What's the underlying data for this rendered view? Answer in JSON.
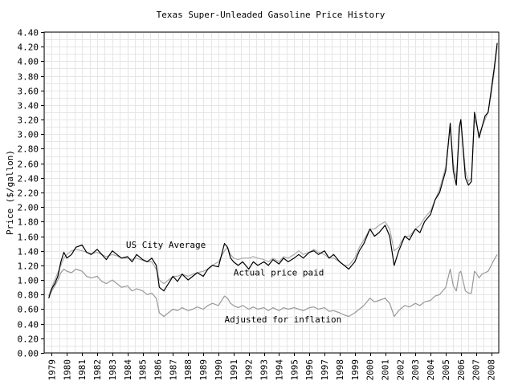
{
  "chart_data": {
    "type": "line",
    "title": "Texas Super-Unleaded Gasoline Price History",
    "xlabel": "",
    "ylabel": "Price ($/gallon)",
    "xlim": [
      1978.5,
      2008.5
    ],
    "ylim": [
      0,
      4.4
    ],
    "grid": true,
    "legend": "none",
    "x_ticks": [
      "1979",
      "1980",
      "1981",
      "1982",
      "1983",
      "1984",
      "1985",
      "1986",
      "1987",
      "1988",
      "1989",
      "1990",
      "1991",
      "1992",
      "1993",
      "1994",
      "1995",
      "1996",
      "1997",
      "1998",
      "1999",
      "2000",
      "2001",
      "2002",
      "2003",
      "2004",
      "2005",
      "2006",
      "2007",
      "2008"
    ],
    "y_ticks": [
      "0.00",
      "0.20",
      "0.40",
      "0.60",
      "0.80",
      "1.00",
      "1.20",
      "1.40",
      "1.60",
      "1.80",
      "2.00",
      "2.20",
      "2.40",
      "2.60",
      "2.80",
      "3.00",
      "3.20",
      "3.40",
      "3.60",
      "3.80",
      "4.00",
      "4.20",
      "4.40"
    ],
    "annotations": [
      {
        "text": "US City Average",
        "x": 1983.9,
        "y": 1.44
      },
      {
        "text": "Actual price paid",
        "x": 1991.0,
        "y": 1.06
      },
      {
        "text": "Adjusted for inflation",
        "x": 1990.4,
        "y": 0.42
      }
    ],
    "series": [
      {
        "color": "#000000",
        "x": [
          1978.8,
          1979.0,
          1979.2,
          1979.4,
          1979.6,
          1979.8,
          1980.0,
          1980.3,
          1980.6,
          1981.0,
          1981.3,
          1981.6,
          1982.0,
          1982.3,
          1982.6,
          1983.0,
          1983.3,
          1983.6,
          1984.0,
          1984.3,
          1984.6,
          1985.0,
          1985.3,
          1985.6,
          1985.9,
          1986.1,
          1986.4,
          1986.7,
          1987.0,
          1987.3,
          1987.6,
          1988.0,
          1988.3,
          1988.6,
          1989.0,
          1989.3,
          1989.6,
          1990.0,
          1990.4,
          1990.6,
          1990.8,
          1991.0,
          1991.3,
          1991.6,
          1992.0,
          1992.3,
          1992.6,
          1993.0,
          1993.3,
          1993.6,
          1994.0,
          1994.3,
          1994.6,
          1995.0,
          1995.3,
          1995.6,
          1996.0,
          1996.3,
          1996.6,
          1997.0,
          1997.3,
          1997.6,
          1998.0,
          1998.3,
          1998.6,
          1999.0,
          1999.3,
          1999.6,
          2000.0,
          2000.3,
          2000.6,
          2001.0,
          2001.3,
          2001.6,
          2001.9,
          2002.0,
          2002.3,
          2002.6,
          2003.0,
          2003.3,
          2003.6,
          2004.0,
          2004.3,
          2004.6,
          2005.0,
          2005.3,
          2005.5,
          2005.7,
          2005.9,
          2006.0,
          2006.3,
          2006.5,
          2006.7,
          2006.9,
          2007.0,
          2007.2,
          2007.4,
          2007.6,
          2007.8,
          2008.0,
          2008.2,
          2008.4
        ],
        "values": [
          0.75,
          0.88,
          0.95,
          1.05,
          1.25,
          1.38,
          1.3,
          1.35,
          1.45,
          1.48,
          1.38,
          1.35,
          1.42,
          1.35,
          1.28,
          1.4,
          1.35,
          1.3,
          1.32,
          1.25,
          1.35,
          1.28,
          1.25,
          1.3,
          1.2,
          0.9,
          0.85,
          0.95,
          1.05,
          0.98,
          1.08,
          1.0,
          1.05,
          1.1,
          1.05,
          1.15,
          1.2,
          1.18,
          1.5,
          1.45,
          1.3,
          1.25,
          1.2,
          1.25,
          1.15,
          1.25,
          1.2,
          1.25,
          1.2,
          1.28,
          1.22,
          1.3,
          1.25,
          1.3,
          1.35,
          1.3,
          1.38,
          1.4,
          1.35,
          1.4,
          1.3,
          1.35,
          1.25,
          1.2,
          1.15,
          1.25,
          1.4,
          1.5,
          1.7,
          1.6,
          1.65,
          1.75,
          1.6,
          1.2,
          1.4,
          1.45,
          1.6,
          1.55,
          1.7,
          1.65,
          1.8,
          1.9,
          2.1,
          2.2,
          2.5,
          3.15,
          2.5,
          2.3,
          3.1,
          3.2,
          2.4,
          2.3,
          2.35,
          3.3,
          3.2,
          2.95,
          3.1,
          3.25,
          3.3,
          3.6,
          3.9,
          4.25
        ]
      },
      {
        "color": "#aaaaaa",
        "x": [
          1978.8,
          1979.0,
          1979.2,
          1979.4,
          1979.6,
          1979.8,
          1980.0,
          1980.3,
          1980.6,
          1981.0,
          1981.3,
          1981.6,
          1982.0,
          1982.3,
          1982.6,
          1983.0,
          1983.3,
          1983.6,
          1984.0,
          1984.3,
          1984.6,
          1985.0,
          1985.3,
          1985.6,
          1985.9,
          1986.1,
          1986.4,
          1986.7,
          1987.0,
          1987.3,
          1987.6,
          1988.0,
          1988.3,
          1988.6,
          1989.0,
          1989.3,
          1989.6,
          1990.0,
          1990.4,
          1990.6,
          1990.8,
          1991.0,
          1991.3,
          1991.6,
          1992.0,
          1992.3,
          1992.6,
          1993.0,
          1993.3,
          1993.6,
          1994.0,
          1994.3,
          1994.6,
          1995.0,
          1995.3,
          1995.6,
          1996.0,
          1996.3,
          1996.6,
          1997.0,
          1997.3,
          1997.6,
          1998.0,
          1998.3,
          1998.6,
          1999.0,
          1999.3,
          1999.6,
          2000.0,
          2000.3,
          2000.6,
          2001.0,
          2001.3,
          2001.6,
          2001.9,
          2002.0,
          2002.3,
          2002.6,
          2003.0,
          2003.3,
          2003.6,
          2004.0,
          2004.3,
          2004.6,
          2005.0,
          2005.3,
          2005.5,
          2005.7,
          2005.9,
          2006.0,
          2006.3,
          2006.5,
          2006.7,
          2006.9,
          2007.0,
          2007.2,
          2007.4,
          2007.6,
          2007.8,
          2008.0,
          2008.2,
          2008.4
        ],
        "values": [
          0.78,
          0.9,
          1.0,
          1.1,
          1.2,
          1.3,
          1.35,
          1.4,
          1.42,
          1.4,
          1.38,
          1.36,
          1.38,
          1.35,
          1.32,
          1.35,
          1.33,
          1.3,
          1.3,
          1.28,
          1.3,
          1.27,
          1.25,
          1.25,
          1.15,
          1.0,
          0.95,
          1.0,
          1.05,
          1.05,
          1.08,
          1.05,
          1.08,
          1.1,
          1.12,
          1.15,
          1.2,
          1.25,
          1.4,
          1.45,
          1.35,
          1.3,
          1.28,
          1.3,
          1.3,
          1.32,
          1.3,
          1.28,
          1.25,
          1.3,
          1.25,
          1.32,
          1.3,
          1.35,
          1.4,
          1.35,
          1.38,
          1.42,
          1.38,
          1.35,
          1.3,
          1.3,
          1.25,
          1.2,
          1.2,
          1.3,
          1.45,
          1.55,
          1.7,
          1.7,
          1.75,
          1.8,
          1.7,
          1.4,
          1.45,
          1.5,
          1.6,
          1.6,
          1.7,
          1.75,
          1.85,
          1.95,
          2.1,
          2.25,
          2.55,
          3.1,
          2.6,
          2.4,
          3.0,
          3.2,
          2.5,
          2.35,
          2.4,
          3.2,
          3.15,
          3.0,
          3.1,
          3.2,
          3.3,
          3.55,
          3.85,
          4.2
        ]
      },
      {
        "color": "#999999",
        "x": [
          1978.8,
          1979.0,
          1979.2,
          1979.4,
          1979.6,
          1979.8,
          1980.0,
          1980.3,
          1980.6,
          1981.0,
          1981.3,
          1981.6,
          1982.0,
          1982.3,
          1982.6,
          1983.0,
          1983.3,
          1983.6,
          1984.0,
          1984.3,
          1984.6,
          1985.0,
          1985.3,
          1985.6,
          1985.9,
          1986.1,
          1986.4,
          1986.7,
          1987.0,
          1987.3,
          1987.6,
          1988.0,
          1988.3,
          1988.6,
          1989.0,
          1989.3,
          1989.6,
          1990.0,
          1990.4,
          1990.6,
          1990.8,
          1991.0,
          1991.3,
          1991.6,
          1992.0,
          1992.3,
          1992.6,
          1993.0,
          1993.3,
          1993.6,
          1994.0,
          1994.3,
          1994.6,
          1995.0,
          1995.3,
          1995.6,
          1996.0,
          1996.3,
          1996.6,
          1997.0,
          1997.3,
          1997.6,
          1998.0,
          1998.3,
          1998.6,
          1999.0,
          1999.3,
          1999.6,
          2000.0,
          2000.3,
          2000.6,
          2001.0,
          2001.3,
          2001.6,
          2001.9,
          2002.0,
          2002.3,
          2002.6,
          2003.0,
          2003.3,
          2003.6,
          2004.0,
          2004.3,
          2004.6,
          2005.0,
          2005.3,
          2005.5,
          2005.7,
          2005.9,
          2006.0,
          2006.3,
          2006.5,
          2006.7,
          2006.9,
          2007.0,
          2007.2,
          2007.4,
          2007.6,
          2007.8,
          2008.0,
          2008.2,
          2008.4
        ],
        "values": [
          0.78,
          0.85,
          0.92,
          1.0,
          1.1,
          1.15,
          1.12,
          1.1,
          1.15,
          1.12,
          1.05,
          1.03,
          1.05,
          0.98,
          0.95,
          1.0,
          0.95,
          0.9,
          0.92,
          0.85,
          0.88,
          0.85,
          0.8,
          0.82,
          0.75,
          0.55,
          0.5,
          0.55,
          0.6,
          0.58,
          0.62,
          0.58,
          0.6,
          0.63,
          0.6,
          0.65,
          0.68,
          0.65,
          0.78,
          0.75,
          0.68,
          0.65,
          0.62,
          0.65,
          0.6,
          0.63,
          0.6,
          0.62,
          0.58,
          0.62,
          0.58,
          0.62,
          0.6,
          0.62,
          0.6,
          0.58,
          0.62,
          0.63,
          0.6,
          0.62,
          0.57,
          0.58,
          0.55,
          0.52,
          0.5,
          0.55,
          0.6,
          0.65,
          0.75,
          0.7,
          0.72,
          0.75,
          0.68,
          0.5,
          0.58,
          0.6,
          0.65,
          0.63,
          0.68,
          0.65,
          0.7,
          0.72,
          0.78,
          0.8,
          0.9,
          1.15,
          0.92,
          0.85,
          1.1,
          1.12,
          0.85,
          0.82,
          0.82,
          1.12,
          1.1,
          1.03,
          1.08,
          1.1,
          1.12,
          1.2,
          1.28,
          1.35
        ]
      }
    ]
  }
}
